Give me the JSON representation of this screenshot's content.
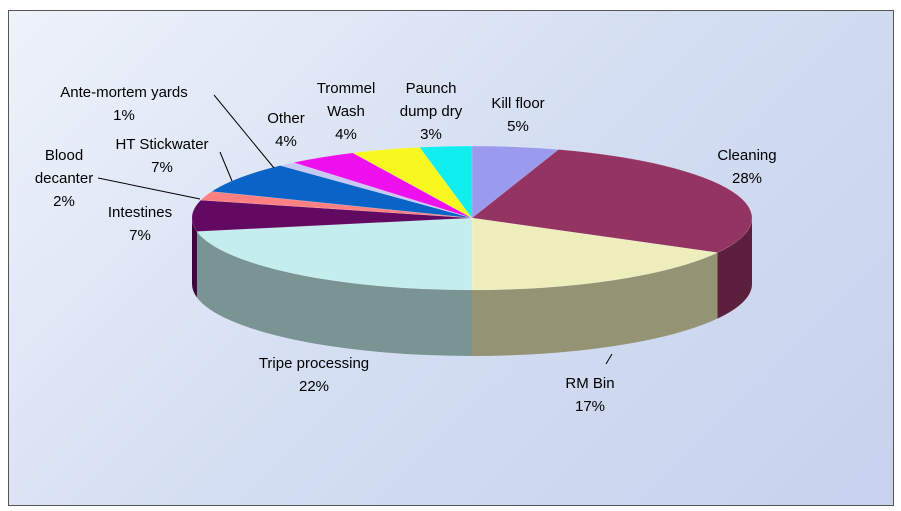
{
  "chart_data": {
    "type": "pie",
    "categories": [
      "Kill floor",
      "Cleaning",
      "RM Bin",
      "Tripe processing",
      "Intestines",
      "Blood decanter",
      "HT Stickwater",
      "Ante-mortem yards",
      "Other",
      "Trommel Wash",
      "Paunch dump dry"
    ],
    "values": [
      5,
      28,
      17,
      22,
      7,
      2,
      7,
      1,
      4,
      4,
      3
    ],
    "value_labels": [
      "5%",
      "28%",
      "17%",
      "22%",
      "7%",
      "2%",
      "7%",
      "1%",
      "4%",
      "4%",
      "3%"
    ],
    "colors": [
      "#9a9aee",
      "#943463",
      "#eeeebd",
      "#c4eeee",
      "#620a62",
      "#ff8080",
      "#0a64c8",
      "#c8c8f4",
      "#ee10ee",
      "#f8f820",
      "#10eeee"
    ]
  }
}
